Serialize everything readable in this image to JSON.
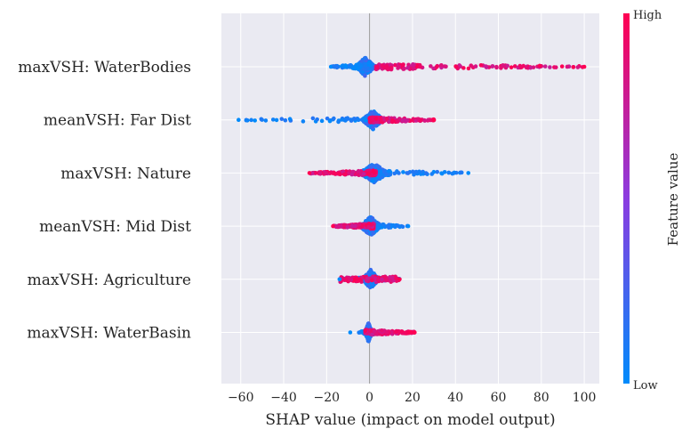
{
  "chart_data": {
    "type": "scatter",
    "subtype": "beeswarm",
    "title": "",
    "xlabel": "SHAP value (impact on model output)",
    "ylabel": "",
    "xlim": [
      -69,
      107
    ],
    "x_ticks": [
      -60,
      -40,
      -20,
      0,
      20,
      40,
      60,
      80,
      100
    ],
    "grid": true,
    "features": [
      {
        "name": "maxVSH: WaterBodies",
        "min": -18,
        "max": 100,
        "core": [
          -6,
          2
        ],
        "low_range": [
          -18,
          5
        ],
        "high_range": [
          3,
          100
        ],
        "high_side": "right"
      },
      {
        "name": "meanVSH: Far Dist",
        "min": -61,
        "max": 30,
        "core": [
          -3,
          6
        ],
        "low_range": [
          -61,
          3
        ],
        "high_range": [
          0,
          30
        ],
        "high_side": "right"
      },
      {
        "name": "maxVSH: Nature",
        "min": -28,
        "max": 46,
        "core": [
          -4,
          8
        ],
        "low_range": [
          -5,
          46
        ],
        "high_range": [
          -28,
          3
        ],
        "high_side": "left"
      },
      {
        "name": "meanVSH: Mid Dist",
        "min": -17,
        "max": 18,
        "core": [
          -4,
          5
        ],
        "low_range": [
          -3,
          18
        ],
        "high_range": [
          -17,
          2
        ],
        "high_side": "left"
      },
      {
        "name": "maxVSH: Agriculture",
        "min": -14,
        "max": 14,
        "core": [
          -3,
          4
        ],
        "low_range": [
          -14,
          14
        ],
        "high_range": [
          -14,
          14
        ],
        "high_side": "both"
      },
      {
        "name": "maxVSH: WaterBasin",
        "min": -9,
        "max": 21,
        "core": [
          -2,
          1
        ],
        "low_range": [
          -5,
          8
        ],
        "high_range": [
          -9,
          21
        ],
        "high_side": "right"
      }
    ],
    "colorbar": {
      "label": "Feature value",
      "high_label": "High",
      "low_label": "Low",
      "low_color": "#008bfb",
      "high_color": "#ff0052"
    }
  }
}
